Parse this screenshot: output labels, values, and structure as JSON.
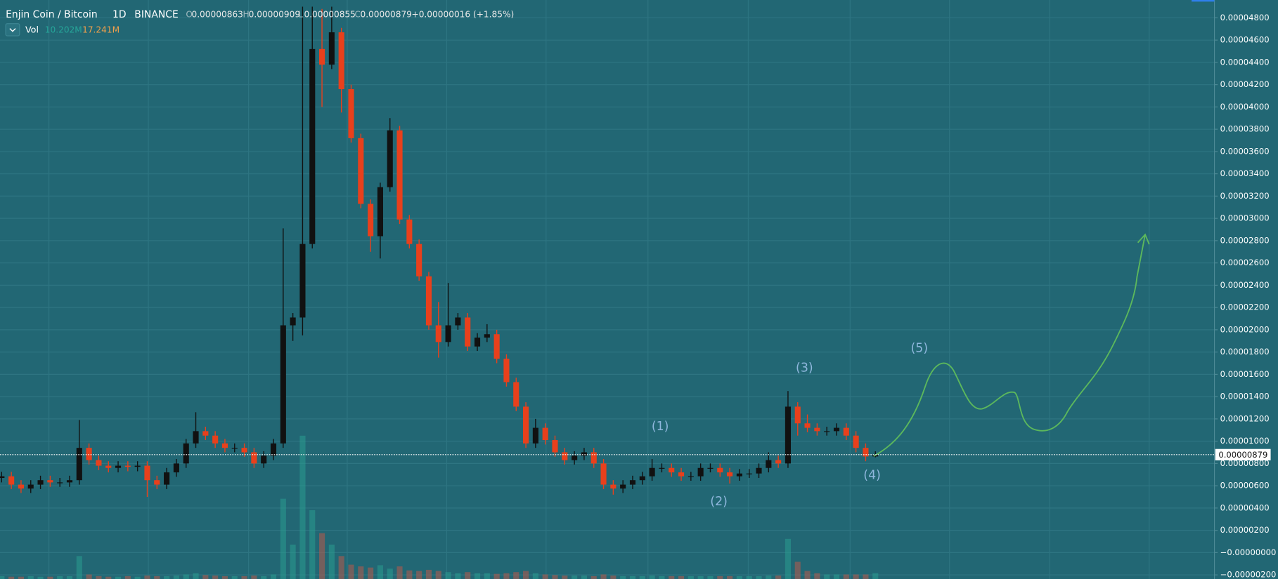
{
  "chart_data": {
    "type": "candlestick",
    "symbol": "Enjin Coin / Bitcoin",
    "interval": "1D",
    "exchange": "BINANCE",
    "ohlc_header": [
      {
        "key": "O",
        "value": {
          "value": 8.63e-06,
          "label": "0.00000863"
        }
      },
      {
        "key": "H",
        "value": {
          "value": 9.09e-06,
          "label": "0.00000909"
        }
      },
      {
        "key": "L",
        "value": {
          "value": 8.55e-06,
          "label": "0.00000855"
        }
      },
      {
        "key": "C",
        "value": {
          "value": 8.79e-06,
          "label": "0.00000879"
        }
      }
    ],
    "change": "+0.00000016 (+1.85%)",
    "volume_legend": {
      "name": "Vol",
      "value": "10.202M",
      "ma": "17.241M"
    },
    "last_price": {
      "value": 8.79e-06,
      "label": "0.00000879"
    },
    "up_color": "#111111",
    "down_color": "#e8401c",
    "volume_up_color": "#2a9d8f",
    "volume_down_color": "#b85a4a",
    "grid": true,
    "ylim": [
      -2.37e-06,
      4.96e-05
    ],
    "yticks": [
      {
        "value": 4.8e-05,
        "label": "0.00004800"
      },
      {
        "value": 4.6e-05,
        "label": "0.00004600"
      },
      {
        "value": 4.4e-05,
        "label": "0.00004400"
      },
      {
        "value": 4.2e-05,
        "label": "0.00004200"
      },
      {
        "value": 4e-05,
        "label": "0.00004000"
      },
      {
        "value": 3.8e-05,
        "label": "0.00003800"
      },
      {
        "value": 3.6e-05,
        "label": "0.00003600"
      },
      {
        "value": 3.4e-05,
        "label": "0.00003400"
      },
      {
        "value": 3.2e-05,
        "label": "0.00003200"
      },
      {
        "value": 3e-05,
        "label": "0.00003000"
      },
      {
        "value": 2.8e-05,
        "label": "0.00002800"
      },
      {
        "value": 2.6e-05,
        "label": "0.00002600"
      },
      {
        "value": 2.4e-05,
        "label": "0.00002400"
      },
      {
        "value": 2.2e-05,
        "label": "0.00002200"
      },
      {
        "value": 2e-05,
        "label": "0.00002000"
      },
      {
        "value": 1.8e-05,
        "label": "0.00001800"
      },
      {
        "value": 1.6e-05,
        "label": "0.00001600"
      },
      {
        "value": 1.4e-05,
        "label": "0.00001400"
      },
      {
        "value": 1.2e-05,
        "label": "0.00001200"
      },
      {
        "value": 1e-05,
        "label": "0.00001000"
      },
      {
        "value": 8e-06,
        "label": "0.00000800"
      },
      {
        "value": 6e-06,
        "label": "0.00000600"
      },
      {
        "value": 4e-06,
        "label": "0.00000400"
      },
      {
        "value": 2e-06,
        "label": "0.00000200"
      },
      {
        "value": 0,
        "label": "−0.00000000"
      },
      {
        "value": -2e-06,
        "label": "−0.00000200"
      }
    ],
    "open": [
      6.7e-06,
      6.85e-06,
      6.1e-06,
      5.75e-06,
      6.1e-06,
      6.5e-06,
      6.3e-06,
      6.3e-06,
      6.5e-06,
      9.4e-06,
      8.3e-06,
      7.8e-06,
      7.6e-06,
      7.8e-06,
      7.7e-06,
      7.8e-06,
      6.5e-06,
      6.1e-06,
      7.2e-06,
      8e-06,
      9.8e-06,
      1.09e-05,
      1.05e-05,
      9.8e-06,
      9.4e-06,
      9.4e-06,
      9e-06,
      8e-06,
      8.7e-06,
      9.8e-06,
      2.04e-05,
      2.11e-05,
      2.77e-05,
      4.52e-05,
      4.38e-05,
      4.67e-05,
      4.16e-05,
      3.72e-05,
      3.13e-05,
      2.84e-05,
      3.28e-05,
      3.79e-05,
      2.99e-05,
      2.77e-05,
      2.48e-05,
      2.04e-05,
      1.89e-05,
      2.04e-05,
      2.11e-05,
      1.85e-05,
      1.93e-05,
      1.96e-05,
      1.74e-05,
      1.53e-05,
      1.31e-05,
      9.8e-06,
      1.12e-05,
      1.01e-05,
      9e-06,
      8.3e-06,
      8.7e-06,
      9e-06,
      8e-06,
      6.1e-06,
      5.75e-06,
      6.1e-06,
      6.5e-06,
      6.85e-06,
      7.6e-06,
      7.6e-06,
      7.2e-06,
      6.85e-06,
      6.85e-06,
      7.6e-06,
      7.6e-06,
      7.2e-06,
      6.85e-06,
      7.1e-06,
      7.1e-06,
      7.6e-06,
      8.3e-06,
      8e-06,
      1.31e-05,
      1.16e-05,
      1.12e-05,
      1.09e-05,
      1.09e-05,
      1.12e-05,
      1.05e-05,
      9.4e-06,
      8.63e-06
    ],
    "high": [
      7.25e-06,
      7.25e-06,
      6.5e-06,
      6.5e-06,
      6.9e-06,
      6.9e-06,
      6.7e-06,
      6.9e-06,
      1.19e-05,
      9.8e-06,
      8.7e-06,
      8.2e-06,
      8.2e-06,
      8.2e-06,
      8.2e-06,
      8.2e-06,
      6.9e-06,
      7.6e-06,
      8.4e-06,
      1.02e-05,
      1.26e-05,
      1.13e-05,
      1.09e-05,
      1.02e-05,
      9.8e-06,
      9.8e-06,
      9.4e-06,
      9.1e-06,
      1.02e-05,
      2.91e-05,
      2.15e-05,
      4.9e-05,
      4.9e-05,
      4.88e-05,
      4.9e-05,
      4.71e-05,
      4.2e-05,
      3.76e-05,
      3.17e-05,
      3.32e-05,
      3.9e-05,
      3.83e-05,
      3.03e-05,
      2.81e-05,
      2.52e-05,
      2.25e-05,
      2.42e-05,
      2.15e-05,
      2.15e-05,
      1.97e-05,
      2.05e-05,
      2e-05,
      1.78e-05,
      1.57e-05,
      1.35e-05,
      1.2e-05,
      1.16e-05,
      1.05e-05,
      9.4e-06,
      9.1e-06,
      9.4e-06,
      9.4e-06,
      8.4e-06,
      6.5e-06,
      6.5e-06,
      6.9e-06,
      7.25e-06,
      8.4e-06,
      8e-06,
      8e-06,
      7.6e-06,
      7.25e-06,
      8e-06,
      8e-06,
      8e-06,
      7.6e-06,
      7.5e-06,
      7.5e-06,
      8e-06,
      9e-06,
      8.7e-06,
      1.45e-05,
      1.35e-05,
      1.24e-05,
      1.16e-05,
      1.13e-05,
      1.16e-05,
      1.16e-05,
      1.09e-05,
      9.8e-06,
      9.09e-06
    ],
    "low": [
      6.3e-06,
      5.7e-06,
      5.35e-06,
      5.35e-06,
      5.7e-06,
      5.9e-06,
      5.9e-06,
      5.9e-06,
      6.1e-06,
      7.9e-06,
      7.4e-06,
      7.2e-06,
      7.2e-06,
      7.3e-06,
      7.3e-06,
      5e-06,
      5.7e-06,
      5.7e-06,
      6.8e-06,
      7.6e-06,
      9.4e-06,
      1.01e-05,
      9.4e-06,
      9e-06,
      9e-06,
      8.6e-06,
      7.6e-06,
      7.6e-06,
      8.3e-06,
      9.4e-06,
      1.9e-05,
      1.95e-05,
      2.73e-05,
      4e-05,
      4.34e-05,
      3.95e-05,
      3.68e-05,
      3.09e-05,
      2.7e-05,
      2.64e-05,
      3.24e-05,
      2.95e-05,
      2.73e-05,
      2.44e-05,
      2e-05,
      1.75e-05,
      1.85e-05,
      2e-05,
      1.81e-05,
      1.81e-05,
      1.89e-05,
      1.7e-05,
      1.49e-05,
      1.27e-05,
      9.4e-06,
      9.4e-06,
      9.7e-06,
      8.6e-06,
      7.9e-06,
      7.9e-06,
      8.3e-06,
      7.6e-06,
      5.7e-06,
      5.2e-06,
      5.35e-06,
      5.7e-06,
      6.1e-06,
      6.45e-06,
      7.2e-06,
      6.8e-06,
      6.45e-06,
      6.45e-06,
      6.45e-06,
      7.2e-06,
      6.8e-06,
      6.2e-06,
      6.45e-06,
      6.7e-06,
      6.7e-06,
      7.2e-06,
      7.6e-06,
      7.6e-06,
      1.05e-05,
      1.08e-05,
      1.05e-05,
      1.05e-05,
      1.05e-05,
      1.01e-05,
      9e-06,
      8.2e-06,
      8.55e-06
    ],
    "close": [
      6.85e-06,
      6.1e-06,
      5.75e-06,
      6.1e-06,
      6.5e-06,
      6.3e-06,
      6.3e-06,
      6.5e-06,
      9.4e-06,
      8.3e-06,
      7.8e-06,
      7.6e-06,
      7.8e-06,
      7.7e-06,
      7.8e-06,
      6.5e-06,
      6.1e-06,
      7.2e-06,
      8e-06,
      9.8e-06,
      1.09e-05,
      1.05e-05,
      9.8e-06,
      9.4e-06,
      9.4e-06,
      9e-06,
      8e-06,
      8.7e-06,
      9.8e-06,
      2.04e-05,
      2.11e-05,
      2.77e-05,
      4.52e-05,
      4.38e-05,
      4.67e-05,
      4.16e-05,
      3.72e-05,
      3.13e-05,
      2.84e-05,
      3.28e-05,
      3.79e-05,
      2.99e-05,
      2.77e-05,
      2.48e-05,
      2.04e-05,
      1.89e-05,
      2.04e-05,
      2.11e-05,
      1.85e-05,
      1.93e-05,
      1.96e-05,
      1.74e-05,
      1.53e-05,
      1.31e-05,
      9.8e-06,
      1.12e-05,
      1.01e-05,
      9e-06,
      8.3e-06,
      8.7e-06,
      9e-06,
      8e-06,
      6.1e-06,
      5.75e-06,
      6.1e-06,
      6.5e-06,
      6.85e-06,
      7.6e-06,
      7.6e-06,
      7.2e-06,
      6.85e-06,
      6.85e-06,
      7.6e-06,
      7.6e-06,
      7.2e-06,
      6.85e-06,
      7.1e-06,
      7.1e-06,
      7.6e-06,
      8.3e-06,
      8e-06,
      1.31e-05,
      1.16e-05,
      1.12e-05,
      1.09e-05,
      1.09e-05,
      1.12e-05,
      1.05e-05,
      9.4e-06,
      8.63e-06,
      8.79e-06
    ],
    "volume": [
      5,
      4,
      4,
      5,
      4,
      4,
      5,
      5,
      40,
      8,
      5,
      4,
      4,
      5,
      4,
      6,
      5,
      5,
      6,
      8,
      10,
      7,
      6,
      5,
      5,
      5,
      6,
      5,
      8,
      140,
      60,
      250,
      120,
      80,
      60,
      40,
      25,
      22,
      20,
      24,
      18,
      22,
      15,
      14,
      16,
      14,
      12,
      10,
      12,
      10,
      10,
      9,
      10,
      12,
      14,
      10,
      8,
      7,
      6,
      6,
      6,
      5,
      8,
      6,
      5,
      5,
      5,
      6,
      5,
      5,
      5,
      5,
      5,
      5,
      5,
      5,
      5,
      5,
      5,
      6,
      6,
      70,
      30,
      14,
      10,
      8,
      8,
      8,
      8,
      8,
      10.202
    ],
    "annotations": [
      "(1)",
      "(2)",
      "(3)",
      "(4)",
      "(5)"
    ]
  }
}
